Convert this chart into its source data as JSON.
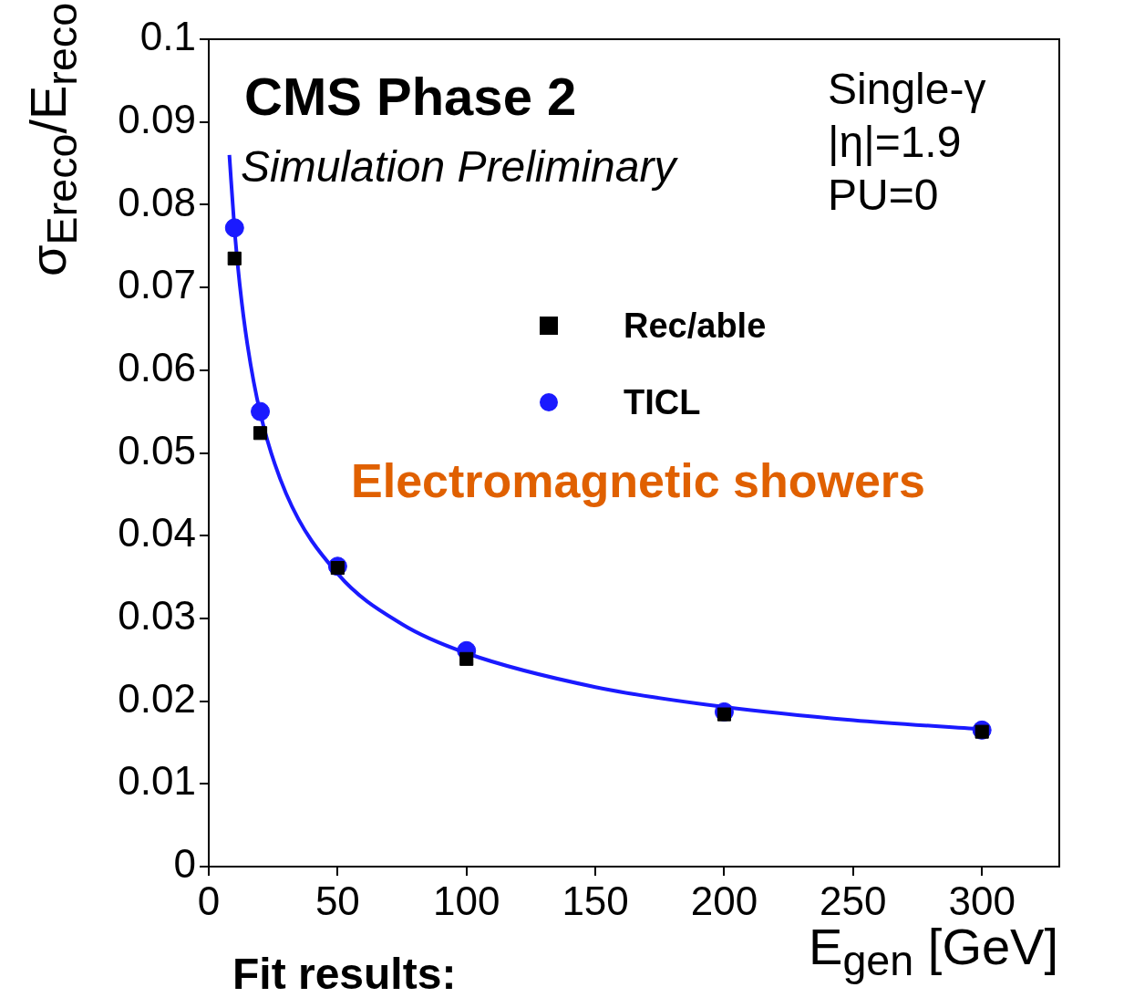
{
  "chart_data": {
    "type": "scatter",
    "xlabel": "E$_{gen}$ [GeV]",
    "ylabel": "σ$_{Ereco}$/E$_{reco}$",
    "annotations": [
      "CMS Phase 2",
      "Simulation Preliminary",
      "Single-γ",
      "|η|=1.9",
      "PU=0",
      "Electromagnetic showers",
      "Fit results:"
    ],
    "series": [
      {
        "name": "Rec/able",
        "marker": "square",
        "color": "#000000",
        "x": [
          10,
          20,
          50,
          100,
          200,
          300
        ],
        "values": [
          0.0735,
          0.0524,
          0.0361,
          0.0251,
          0.0184,
          0.0163
        ]
      },
      {
        "name": "TICL",
        "marker": "circle",
        "color": "#1a1aff",
        "x": [
          10,
          20,
          50,
          100,
          200,
          300
        ],
        "values": [
          0.0772,
          0.055,
          0.0363,
          0.0261,
          0.0187,
          0.0165
        ]
      },
      {
        "type": "line",
        "marker": "none",
        "line_style": "solid",
        "color": "#1a1aff",
        "x": [
          8,
          10,
          12,
          15,
          20,
          30,
          50,
          75,
          100,
          150,
          200,
          250,
          300
        ],
        "values": [
          0.086,
          0.077,
          0.0704,
          0.0631,
          0.0548,
          0.0451,
          0.0354,
          0.0293,
          0.0258,
          0.0217,
          0.0193,
          0.0177,
          0.0166
        ]
      }
    ],
    "xlim": [
      0,
      330
    ],
    "xticks": [
      0,
      50,
      100,
      150,
      200,
      250,
      300
    ],
    "ylim": [
      0,
      0.1
    ],
    "yticks": [
      0,
      0.01,
      0.02,
      0.03,
      0.04,
      0.05,
      0.06,
      0.07,
      0.08,
      0.09,
      0.1
    ],
    "grid": false,
    "legend": "top"
  }
}
